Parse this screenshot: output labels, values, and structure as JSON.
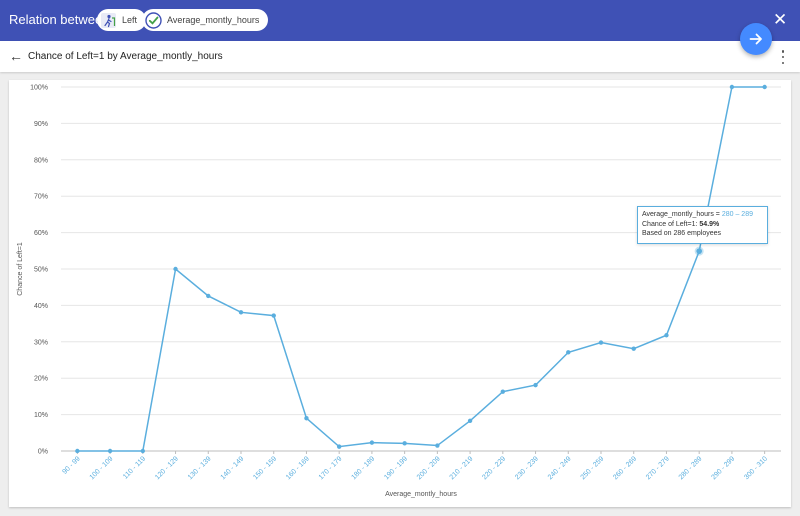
{
  "header": {
    "title": "Relation between",
    "chips": [
      {
        "label": "Left",
        "icon": "person-leaving-icon"
      },
      {
        "label": "Average_montly_hours",
        "icon": "check-circle-icon"
      }
    ],
    "close_label": "✕"
  },
  "subheader": {
    "back_label": "←",
    "title": "Chance of Left=1 by Average_montly_hours"
  },
  "tooltip": {
    "line1_prefix": "Average_montly_hours = ",
    "line1_value": "280 – 289",
    "line2_prefix": "Chance of Left=1: ",
    "line2_value": "54.9%",
    "line3": "Based on 286 employees"
  },
  "colors": {
    "header_bg": "#3f51b5",
    "accent": "#448aff",
    "line": "#5aaede"
  },
  "chart_data": {
    "type": "line",
    "xlabel": "Average_montly_hours",
    "ylabel": "Chance of Left=1",
    "ylim": [
      0,
      100
    ],
    "yticks": [
      "0%",
      "10%",
      "20%",
      "30%",
      "40%",
      "50%",
      "60%",
      "70%",
      "80%",
      "90%",
      "100%"
    ],
    "grid": true,
    "categories": [
      "90 - 99",
      "100 - 109",
      "110 - 119",
      "120 - 129",
      "130 - 139",
      "140 - 149",
      "150 - 159",
      "160 - 169",
      "170 - 179",
      "180 - 189",
      "190 - 199",
      "200 - 209",
      "210 - 219",
      "220 - 229",
      "230 - 239",
      "240 - 249",
      "250 - 259",
      "260 - 269",
      "270 - 279",
      "280 - 289",
      "290 - 299",
      "300 - 310"
    ],
    "values": [
      0,
      0,
      0,
      50,
      42.6,
      38.1,
      37.2,
      9.0,
      1.2,
      2.3,
      2.1,
      1.5,
      8.3,
      16.3,
      18.1,
      27.1,
      29.8,
      28.1,
      31.8,
      54.9,
      100,
      100
    ],
    "highlight_index": 19
  }
}
